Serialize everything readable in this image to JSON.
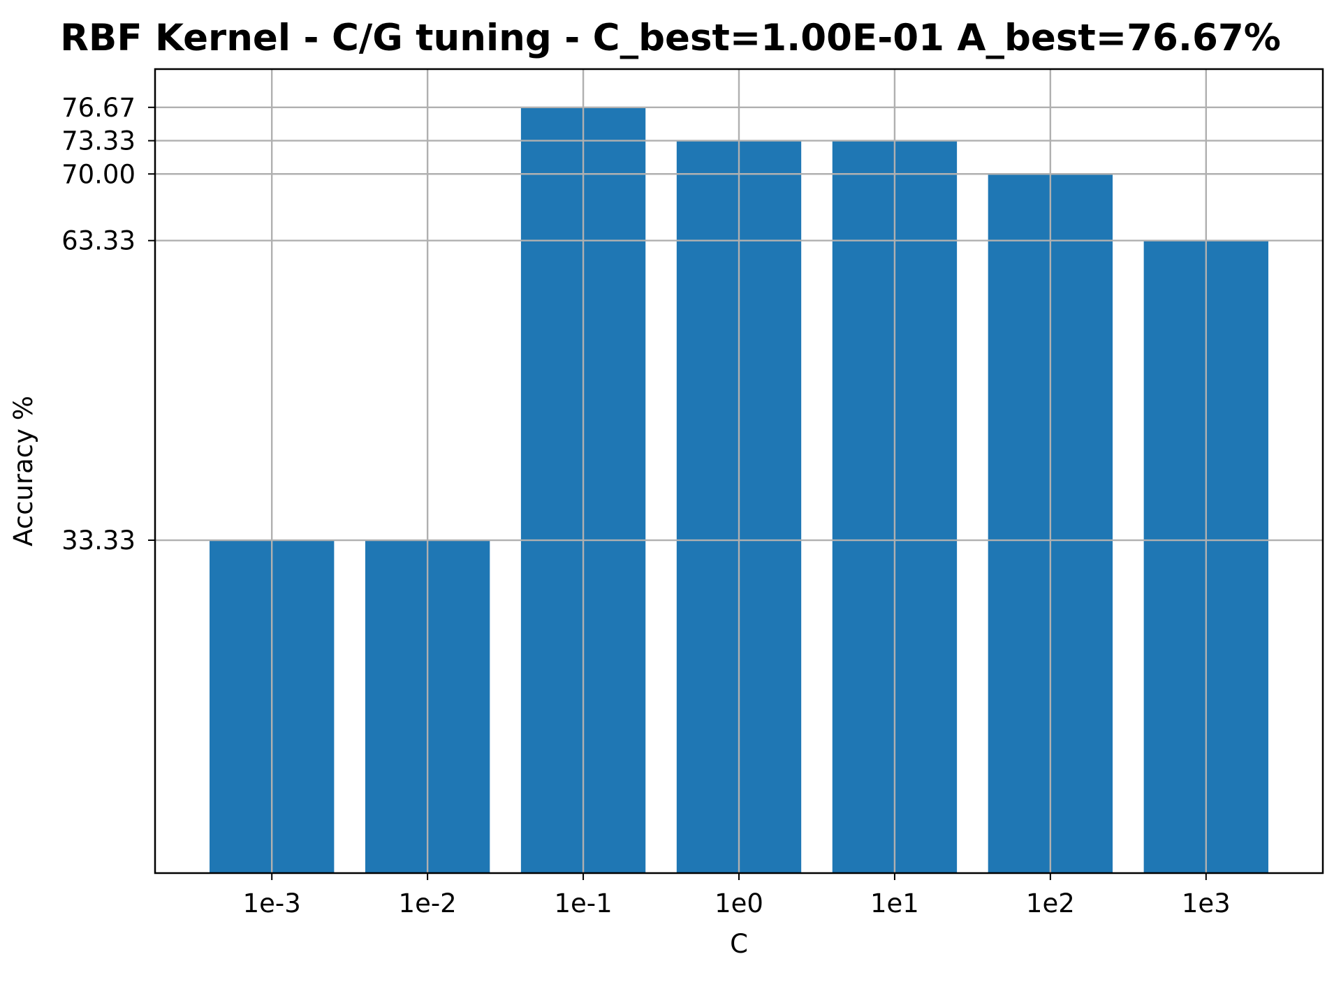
{
  "chart_data": {
    "type": "bar",
    "title": "RBF Kernel - C/G tuning - C_best=1.00E-01 A_best=76.67%",
    "xlabel": "C",
    "ylabel": "Accuracy %",
    "categories": [
      "1e-3",
      "1e-2",
      "1e-1",
      "1e0",
      "1e1",
      "1e2",
      "1e3"
    ],
    "values": [
      33.33,
      33.33,
      76.67,
      73.33,
      73.33,
      70.0,
      63.33
    ],
    "yticks": [
      33.33,
      63.33,
      70.0,
      73.33,
      76.67
    ],
    "ytick_labels": [
      "33.33",
      "63.33",
      "70.00",
      "73.33",
      "76.67"
    ],
    "ylim": [
      0,
      80.5
    ],
    "grid": true,
    "bar_color": "#1f77b4",
    "grid_color": "#b0b0b0"
  }
}
